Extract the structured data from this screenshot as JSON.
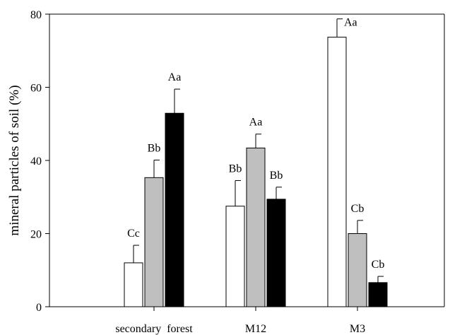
{
  "chart_data": {
    "type": "bar",
    "title": "",
    "xlabel": "",
    "ylabel": "mineral particles of soil (%)",
    "ylim": [
      0,
      80
    ],
    "yticks": [
      0,
      20,
      40,
      60,
      80
    ],
    "grid": false,
    "categories": [
      "secondary  forest",
      "M12",
      "M3"
    ],
    "series": [
      {
        "color": "#ffffff",
        "values": [
          12,
          27.5,
          73.7
        ],
        "errors": [
          4.8,
          7.0,
          5.0
        ],
        "labels": [
          "Cc",
          "Bb",
          "Aa"
        ]
      },
      {
        "color": "#bfbfbf",
        "values": [
          35.3,
          43.4,
          20
        ],
        "errors": [
          4.8,
          3.8,
          3.6
        ],
        "labels": [
          "Bb",
          "Aa",
          "Cb"
        ]
      },
      {
        "color": "#000000",
        "values": [
          52.9,
          29.4,
          6.6
        ],
        "errors": [
          6.6,
          3.3,
          1.7
        ],
        "labels": [
          "Aa",
          "Bb",
          "Cb"
        ]
      }
    ]
  }
}
